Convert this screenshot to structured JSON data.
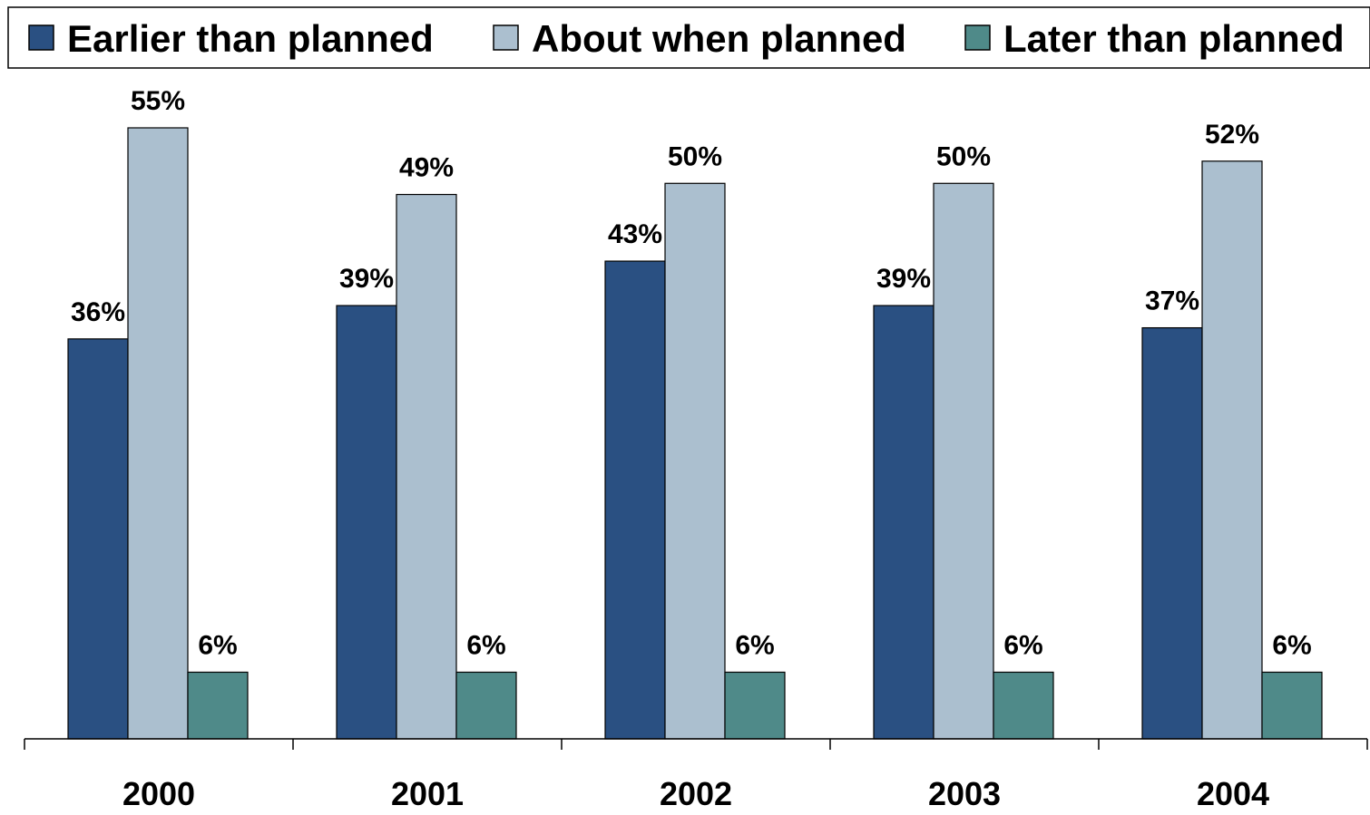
{
  "chart_data": {
    "type": "bar",
    "categories": [
      "2000",
      "2001",
      "2002",
      "2003",
      "2004"
    ],
    "series": [
      {
        "name": "Earlier than planned",
        "values": [
          36,
          39,
          43,
          39,
          37
        ],
        "labels": [
          "36%",
          "39%",
          "43%",
          "39%",
          "37%"
        ],
        "color": "#2a5082"
      },
      {
        "name": "About when planned",
        "values": [
          55,
          49,
          50,
          50,
          52
        ],
        "labels": [
          "55%",
          "49%",
          "50%",
          "50%",
          "52%"
        ],
        "color": "#abbfcf"
      },
      {
        "name": "Later than planned",
        "values": [
          6,
          6,
          6,
          6,
          6
        ],
        "labels": [
          "6%",
          "6%",
          "6%",
          "6%",
          "6%"
        ],
        "color": "#4f8a89"
      }
    ],
    "ylim": [
      0,
      55
    ],
    "grid": false,
    "legend_position": "top",
    "title": "",
    "xlabel": "",
    "ylabel": ""
  }
}
